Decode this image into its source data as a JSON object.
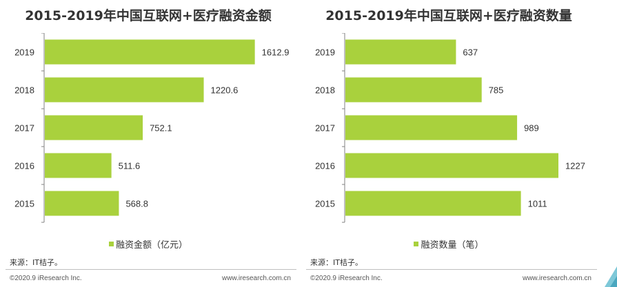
{
  "chart_data": [
    {
      "type": "bar",
      "orientation": "horizontal",
      "title": "2015-2019年中国互联网+医疗融资金额",
      "categories": [
        "2019",
        "2018",
        "2017",
        "2016",
        "2015"
      ],
      "series": [
        {
          "name": "融资金额（亿元）",
          "values": [
            1612.9,
            1220.6,
            752.1,
            511.6,
            568.8
          ],
          "value_labels": [
            "1612.9",
            "1220.6",
            "752.1",
            "511.6",
            "568.8"
          ]
        }
      ],
      "xlim": [
        0,
        1800
      ],
      "bar_color": "#a9d13d",
      "grid": false,
      "legend_position": "bottom"
    },
    {
      "type": "bar",
      "orientation": "horizontal",
      "title": "2015-2019年中国互联网+医疗融资数量",
      "categories": [
        "2019",
        "2018",
        "2017",
        "2016",
        "2015"
      ],
      "series": [
        {
          "name": "融资数量（笔）",
          "values": [
            637,
            785,
            989,
            1227,
            1011
          ],
          "value_labels": [
            "637",
            "785",
            "989",
            "1227",
            "1011"
          ]
        }
      ],
      "xlim": [
        0,
        1350
      ],
      "bar_color": "#a9d13d",
      "grid": false,
      "legend_position": "bottom"
    }
  ],
  "footer": {
    "left_source": "来源：IT桔子。",
    "right_source": "来源：IT桔子。",
    "left_copyright": "©2020.9 iResearch Inc.",
    "left_website": "www.iresearch.com.cn",
    "right_copyright": "©2020.9 iResearch Inc.",
    "right_website": "www.iresearch.com.cn"
  },
  "colors": {
    "bar": "#a9d13d",
    "axis": "#808080",
    "corner_accent": "#7ec8d8"
  }
}
